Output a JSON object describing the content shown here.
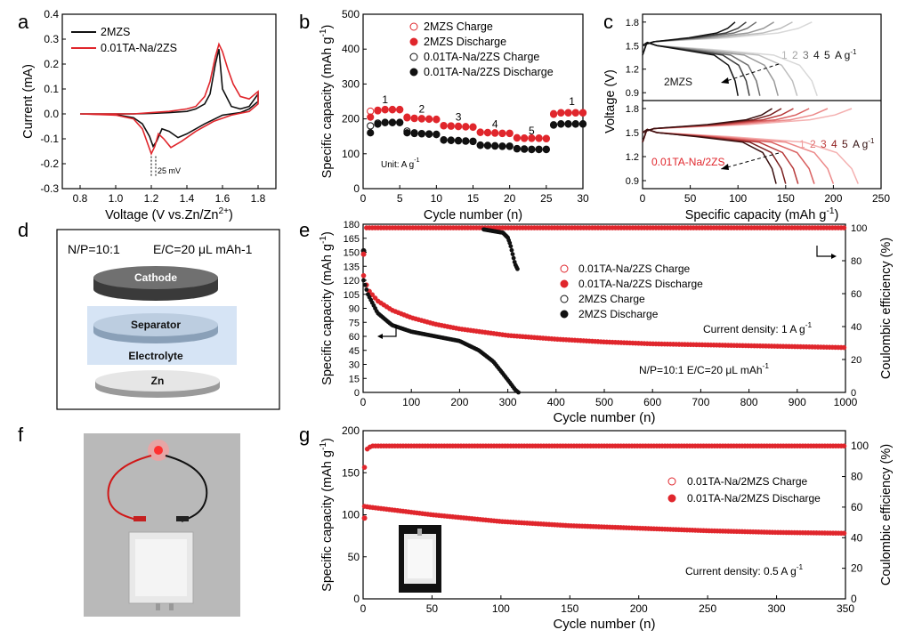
{
  "colors": {
    "red": "#e0262c",
    "black": "#111111",
    "axis": "#000000"
  },
  "panel_labels": [
    "a",
    "b",
    "c",
    "d",
    "e",
    "f",
    "g"
  ],
  "chart_data": [
    {
      "id": "a",
      "type": "line",
      "xlabel": "Voltage (V vs.Zn/Zn",
      "xlabel_sup": "2+",
      "xlabel_end": ")",
      "ylabel": "Current (mA)",
      "xlim": [
        0.7,
        1.9
      ],
      "ylim": [
        -0.3,
        0.4
      ],
      "xticks": [
        "0.8",
        "1.0",
        "1.2",
        "1.4",
        "1.6",
        "1.8"
      ],
      "xtick_values": [
        0.8,
        1.0,
        1.2,
        1.4,
        1.6,
        1.8
      ],
      "yticks": [
        "-0.3",
        "-0.2",
        "-0.1",
        "0.0",
        "0.1",
        "0.2",
        "0.3",
        "0.4"
      ],
      "ytick_values": [
        -0.3,
        -0.2,
        -0.1,
        0.0,
        0.1,
        0.2,
        0.3,
        0.4
      ],
      "annotation": "25 mV",
      "series": [
        {
          "name": "2MZS",
          "color": "#111111",
          "x": [
            0.8,
            1.0,
            1.1,
            1.15,
            1.19,
            1.21,
            1.23,
            1.26,
            1.3,
            1.35,
            1.4,
            1.5,
            1.6,
            1.7,
            1.75,
            1.8,
            1.8,
            1.75,
            1.7,
            1.65,
            1.6,
            1.58,
            1.56,
            1.53,
            1.5,
            1.45,
            1.4,
            1.3,
            1.2,
            1.1,
            1.0,
            0.8
          ],
          "y": [
            0.0,
            -0.003,
            -0.015,
            -0.04,
            -0.09,
            -0.13,
            -0.11,
            -0.06,
            -0.07,
            -0.095,
            -0.08,
            -0.04,
            -0.005,
            0.005,
            0.02,
            0.05,
            0.08,
            0.03,
            0.02,
            0.03,
            0.1,
            0.26,
            0.2,
            0.08,
            0.04,
            0.02,
            0.01,
            0.005,
            0.002,
            0.0,
            0.0,
            0.0
          ]
        },
        {
          "name": "0.01TA-Na/2ZS",
          "color": "#e0262c",
          "x": [
            0.8,
            1.0,
            1.1,
            1.15,
            1.18,
            1.2,
            1.22,
            1.24,
            1.27,
            1.31,
            1.37,
            1.45,
            1.55,
            1.65,
            1.75,
            1.8,
            1.8,
            1.75,
            1.7,
            1.66,
            1.63,
            1.6,
            1.58,
            1.56,
            1.53,
            1.5,
            1.45,
            1.4,
            1.3,
            1.2,
            1.1,
            1.0,
            0.8
          ],
          "y": [
            0.0,
            -0.005,
            -0.02,
            -0.06,
            -0.12,
            -0.16,
            -0.13,
            -0.08,
            -0.1,
            -0.135,
            -0.11,
            -0.07,
            -0.03,
            -0.005,
            0.01,
            0.04,
            0.09,
            0.06,
            0.07,
            0.12,
            0.18,
            0.25,
            0.28,
            0.23,
            0.13,
            0.07,
            0.03,
            0.02,
            0.01,
            0.005,
            0.0,
            0.0,
            0.0
          ]
        }
      ]
    },
    {
      "id": "b",
      "type": "scatter",
      "xlabel": "Cycle number (n)",
      "ylabel": "Specific capacity (mAh g",
      "ylabel_sup": "-1",
      "ylabel_end": ")",
      "xlim": [
        0,
        30
      ],
      "ylim": [
        0,
        500
      ],
      "xticks": [
        "0",
        "5",
        "10",
        "15",
        "20",
        "25",
        "30"
      ],
      "xtick_values": [
        0,
        5,
        10,
        15,
        20,
        25,
        30
      ],
      "yticks": [
        "0",
        "100",
        "200",
        "300",
        "400",
        "500"
      ],
      "ytick_values": [
        0,
        100,
        200,
        300,
        400,
        500
      ],
      "unit_note": "Unit: A g",
      "unit_sup": "-1",
      "rate_labels": [
        "1",
        "2",
        "3",
        "4",
        "5",
        "1"
      ],
      "rate_positions": [
        [
          3,
          245
        ],
        [
          8,
          218
        ],
        [
          13,
          195
        ],
        [
          18,
          175
        ],
        [
          23,
          155
        ],
        [
          28.5,
          240
        ]
      ],
      "legend": [
        "2MZS Charge",
        "2MZS  Discharge",
        "0.01TA-Na/2ZS Charge",
        "0.01TA-Na/2ZS Discharge"
      ],
      "series": [
        {
          "name": "2MZS Charge",
          "style": "open",
          "color": "#e0262c",
          "x": [
            1,
            2,
            3,
            4,
            5,
            6,
            7,
            8,
            9,
            10,
            11,
            12,
            13,
            14,
            15,
            16,
            17,
            18,
            19,
            20,
            21,
            22,
            23,
            24,
            25,
            26,
            27,
            28,
            29,
            30
          ],
          "y": [
            222,
            225,
            227,
            227,
            227,
            205,
            202,
            201,
            200,
            199,
            181,
            180,
            179,
            178,
            177,
            162,
            161,
            160,
            159,
            159,
            146,
            145,
            145,
            145,
            144,
            215,
            218,
            218,
            218,
            218
          ]
        },
        {
          "name": "2MZS  Discharge",
          "style": "filled",
          "color": "#e0262c",
          "x": [
            1,
            2,
            3,
            4,
            5,
            6,
            7,
            8,
            9,
            10,
            11,
            12,
            13,
            14,
            15,
            16,
            17,
            18,
            19,
            20,
            21,
            22,
            23,
            24,
            25,
            26,
            27,
            28,
            29,
            30
          ],
          "y": [
            205,
            223,
            226,
            226,
            226,
            203,
            201,
            200,
            199,
            198,
            180,
            179,
            178,
            177,
            176,
            161,
            160,
            159,
            158,
            158,
            145,
            144,
            144,
            144,
            143,
            213,
            217,
            217,
            217,
            217
          ]
        },
        {
          "name": "0.01TA-Na/2ZS Charge",
          "style": "open",
          "color": "#111111",
          "x": [
            1,
            2,
            3,
            4,
            5,
            6,
            7,
            8,
            9,
            10,
            11,
            12,
            13,
            14,
            15,
            16,
            17,
            18,
            19,
            20,
            21,
            22,
            23,
            24,
            25,
            26,
            27,
            28,
            29,
            30
          ],
          "y": [
            180,
            188,
            190,
            190,
            190,
            165,
            160,
            158,
            157,
            156,
            140,
            139,
            138,
            137,
            136,
            125,
            124,
            123,
            122,
            122,
            115,
            114,
            113,
            113,
            113,
            183,
            186,
            186,
            186,
            186
          ]
        },
        {
          "name": "0.01TA-Na/2ZS Discharge",
          "style": "filled",
          "color": "#111111",
          "x": [
            1,
            2,
            3,
            4,
            5,
            6,
            7,
            8,
            9,
            10,
            11,
            12,
            13,
            14,
            15,
            16,
            17,
            18,
            19,
            20,
            21,
            22,
            23,
            24,
            25,
            26,
            27,
            28,
            29,
            30
          ],
          "y": [
            160,
            185,
            189,
            189,
            189,
            160,
            158,
            157,
            156,
            155,
            139,
            138,
            137,
            136,
            135,
            124,
            123,
            122,
            121,
            121,
            114,
            113,
            112,
            112,
            112,
            182,
            185,
            185,
            185,
            185
          ]
        }
      ]
    },
    {
      "id": "c",
      "type": "line",
      "xlabel": "Specific capacity (mAh g",
      "xlabel_sup": "-1",
      "xlabel_end": ")",
      "ylabel": "Voltage (V)",
      "xlim": [
        0,
        250
      ],
      "xticks": [
        "0",
        "50",
        "100",
        "150",
        "200",
        "250"
      ],
      "xtick_values": [
        0,
        50,
        100,
        150,
        200,
        250
      ],
      "top": {
        "label": "2MZS",
        "ylim": [
          0.8,
          1.9
        ],
        "yticks": [
          "0.9",
          "1.2",
          "1.5",
          "1.8"
        ],
        "ytick_values": [
          0.9,
          1.2,
          1.5,
          1.8
        ],
        "rates": [
          "1",
          "2",
          "3",
          "4",
          "5",
          "A g"
        ],
        "rates_sup": "-1",
        "capacities": [
          183,
          162,
          142,
          123,
          112,
          100
        ],
        "shades": [
          "#d8d8d8",
          "#bdbdbd",
          "#9a9a9a",
          "#707070",
          "#404040",
          "#111111"
        ]
      },
      "bottom": {
        "label": "0.01TA-Na/2ZS",
        "ylim": [
          0.8,
          1.9
        ],
        "yticks": [
          "0.9",
          "1.2",
          "1.5",
          "1.8"
        ],
        "ytick_values": [
          0.9,
          1.2,
          1.5,
          1.8
        ],
        "rates": [
          "1",
          "2",
          "3",
          "4",
          "5",
          "A g"
        ],
        "rates_sup": "-1",
        "capacities": [
          226,
          200,
          180,
          163,
          150,
          140
        ],
        "shades": [
          "#f4b0b0",
          "#ec8a8a",
          "#d96060",
          "#b83a3a",
          "#7a2020",
          "#3a1010"
        ]
      }
    },
    {
      "id": "e",
      "type": "scatter",
      "xlabel": "Cycle number (n)",
      "ylabel": "Specific capacity (mAh g",
      "ylabel_sup": "-1",
      "ylabel_end": ")",
      "y2label": "Coulombic efficiency (%)",
      "xlim": [
        0,
        1000
      ],
      "ylim": [
        0,
        180
      ],
      "y2lim": [
        0,
        100
      ],
      "xticks": [
        "0",
        "100",
        "200",
        "300",
        "400",
        "500",
        "600",
        "700",
        "800",
        "900",
        "1000"
      ],
      "xtick_values": [
        0,
        100,
        200,
        300,
        400,
        500,
        600,
        700,
        800,
        900,
        1000
      ],
      "yticks": [
        "0",
        "15",
        "30",
        "45",
        "60",
        "75",
        "90",
        "105",
        "120",
        "135",
        "150",
        "165",
        "180"
      ],
      "ytick_values": [
        0,
        15,
        30,
        45,
        60,
        75,
        90,
        105,
        120,
        135,
        150,
        165,
        180
      ],
      "y2ticks": [
        "0",
        "20",
        "40",
        "60",
        "80",
        "100"
      ],
      "y2tick_values": [
        0,
        20,
        40,
        60,
        80,
        100
      ],
      "legend": [
        "0.01TA-Na/2ZS Charge",
        "0.01TA-Na/2ZS Discharge",
        "2MZS Charge",
        "2MZS Discharge"
      ],
      "note1": "Current density: 1 A g",
      "note1_sup": "-1",
      "note2": "N/P=10:1     E/C=20 μL mAh",
      "note2_sup": "-1",
      "ta_capacity": {
        "x": [
          1,
          10,
          30,
          60,
          100,
          150,
          200,
          300,
          400,
          500,
          600,
          700,
          800,
          900,
          1000
        ],
        "y": [
          125,
          110,
          98,
          88,
          80,
          73,
          68,
          61,
          57,
          54,
          52,
          51,
          50,
          49,
          48
        ]
      },
      "mzs_capacity": {
        "x": [
          1,
          10,
          30,
          60,
          100,
          150,
          200,
          240,
          270,
          290,
          305,
          315,
          322
        ],
        "y": [
          120,
          105,
          85,
          72,
          65,
          60,
          55,
          45,
          33,
          20,
          10,
          3,
          0
        ]
      },
      "ta_ce": {
        "x": [
          1,
          3,
          6,
          10,
          1000
        ],
        "y": [
          84,
          98,
          100,
          100,
          100
        ]
      },
      "mzs_ce": {
        "x": [
          1,
          3,
          6,
          10,
          50,
          100,
          150,
          200,
          250,
          290,
          300,
          305,
          310,
          315,
          320
        ],
        "y": [
          86,
          99,
          100,
          100,
          100,
          100,
          100,
          100,
          99,
          97,
          94,
          90,
          84,
          78,
          75
        ]
      }
    },
    {
      "id": "g",
      "type": "scatter",
      "xlabel": "Cycle number (n)",
      "ylabel": "Specific capacity (mAh g",
      "ylabel_sup": "-1",
      "ylabel_end": ")",
      "y2label": "Coulombic efficiency (%)",
      "xlim": [
        0,
        350
      ],
      "ylim": [
        0,
        200
      ],
      "y2lim": [
        0,
        110
      ],
      "xticks": [
        "0",
        "50",
        "100",
        "150",
        "200",
        "250",
        "300",
        "350"
      ],
      "xtick_values": [
        0,
        50,
        100,
        150,
        200,
        250,
        300,
        350
      ],
      "yticks": [
        "0",
        "50",
        "100",
        "150",
        "200"
      ],
      "ytick_values": [
        0,
        50,
        100,
        150,
        200
      ],
      "y2ticks": [
        "0",
        "20",
        "40",
        "60",
        "80",
        "100"
      ],
      "y2tick_values": [
        0,
        20,
        40,
        60,
        80,
        100
      ],
      "legend": [
        "0.01TA-Na/2MZS Charge",
        "0.01TA-Na/2MZS Discharge"
      ],
      "note": "Current density: 0.5 A g",
      "note_sup": "-1",
      "capacity": {
        "x": [
          1,
          5,
          20,
          50,
          100,
          150,
          200,
          250,
          300,
          350
        ],
        "y": [
          110,
          109,
          106,
          100,
          92,
          87,
          84,
          81,
          79,
          78
        ]
      },
      "ce": {
        "x": [
          1,
          3,
          6,
          350
        ],
        "y": [
          86,
          98,
          100,
          100
        ]
      }
    }
  ],
  "panel_d": {
    "ratio": "N/P=10:1",
    "ec": "E/C=20 μL mAh-1",
    "layers": [
      "Cathode",
      "Separator",
      "Electrolyte",
      "Zn"
    ]
  },
  "panel_c_arrow_note": "",
  "panel_f": {
    "label": "f"
  }
}
